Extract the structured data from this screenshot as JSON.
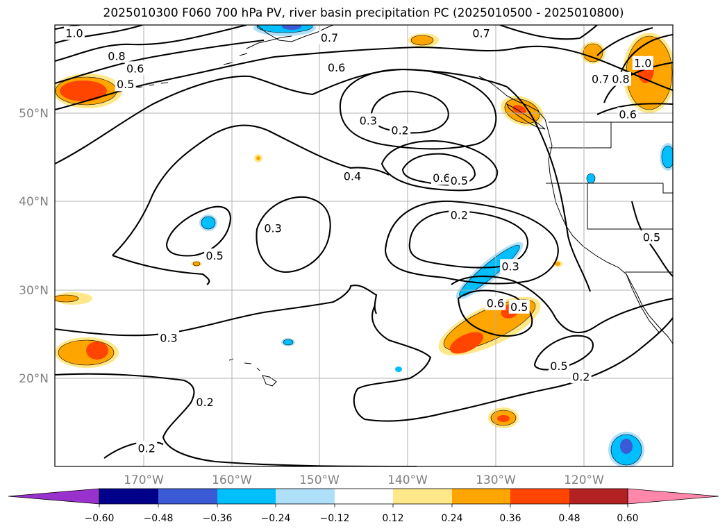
{
  "title": "2025010300 F060 700 hPa PV, river basin precipitation PC (2025010500 - 2025010800)",
  "lon_ticks": [
    "170°W",
    "160°W",
    "150°W",
    "140°W",
    "130°W",
    "120°W"
  ],
  "lat_ticks": [
    "50°N",
    "40°N",
    "30°N",
    "20°N"
  ],
  "contour_labels": [
    {
      "text": "1.0",
      "lon": -177.8,
      "lat": 59.1
    },
    {
      "text": "0.8",
      "lon": -173.0,
      "lat": 56.5
    },
    {
      "text": "0.6",
      "lon": -170.9,
      "lat": 55.1
    },
    {
      "text": "0.5",
      "lon": -172.0,
      "lat": 53.3
    },
    {
      "text": "0.7",
      "lon": -148.9,
      "lat": 58.6
    },
    {
      "text": "0.6",
      "lon": -148.1,
      "lat": 55.2
    },
    {
      "text": "0.7",
      "lon": -131.7,
      "lat": 59.1
    },
    {
      "text": "0.7",
      "lon": -118.2,
      "lat": 53.9
    },
    {
      "text": "0.8",
      "lon": -115.9,
      "lat": 53.9
    },
    {
      "text": "1.0",
      "lon": -113.4,
      "lat": 55.7
    },
    {
      "text": "0.6",
      "lon": -115.1,
      "lat": 49.9
    },
    {
      "text": "0.3",
      "lon": -144.5,
      "lat": 49.2
    },
    {
      "text": "0.2",
      "lon": -140.9,
      "lat": 48.1
    },
    {
      "text": "0.4",
      "lon": -146.3,
      "lat": 42.9
    },
    {
      "text": "0.6",
      "lon": -136.2,
      "lat": 42.7
    },
    {
      "text": "0.5",
      "lon": -134.2,
      "lat": 42.4
    },
    {
      "text": "0.2",
      "lon": -134.2,
      "lat": 38.5
    },
    {
      "text": "0.3",
      "lon": -155.3,
      "lat": 37.0
    },
    {
      "text": "0.5",
      "lon": -161.9,
      "lat": 33.9
    },
    {
      "text": "0.5",
      "lon": -112.4,
      "lat": 36.0
    },
    {
      "text": "0.3",
      "lon": -128.4,
      "lat": 32.7
    },
    {
      "text": "0.6",
      "lon": -130.1,
      "lat": 28.5
    },
    {
      "text": "0.5",
      "lon": -127.4,
      "lat": 28.1
    },
    {
      "text": "0.3",
      "lon": -167.1,
      "lat": 24.6
    },
    {
      "text": "0.5",
      "lon": -122.9,
      "lat": 21.4
    },
    {
      "text": "0.2",
      "lon": -120.4,
      "lat": 20.2
    },
    {
      "text": "0.2",
      "lon": -163.0,
      "lat": 17.3
    },
    {
      "text": "0.2",
      "lon": -169.6,
      "lat": 12.1
    }
  ],
  "colorbar": {
    "levels": [
      "−0.60",
      "−0.48",
      "−0.36",
      "−0.24",
      "−0.12",
      "0.12",
      "0.24",
      "0.36",
      "0.48",
      "0.60"
    ],
    "colors": [
      "#9932cc",
      "#00008b",
      "#3b5bd6",
      "#00bfff",
      "#afe0fa",
      "#ffffff",
      "#ffe88a",
      "#ffa500",
      "#ff4500",
      "#b22222",
      "#ff88aa"
    ]
  },
  "colors": {
    "orange": "#ffa500",
    "red": "#ff4500",
    "yellow": "#ffe88a",
    "deep_sky_blue": "#00bfff",
    "light_blue": "#afe0fa",
    "royal_blue": "#3b5bd6",
    "grid": "#b0b0b0",
    "tick_text": "#808080"
  }
}
